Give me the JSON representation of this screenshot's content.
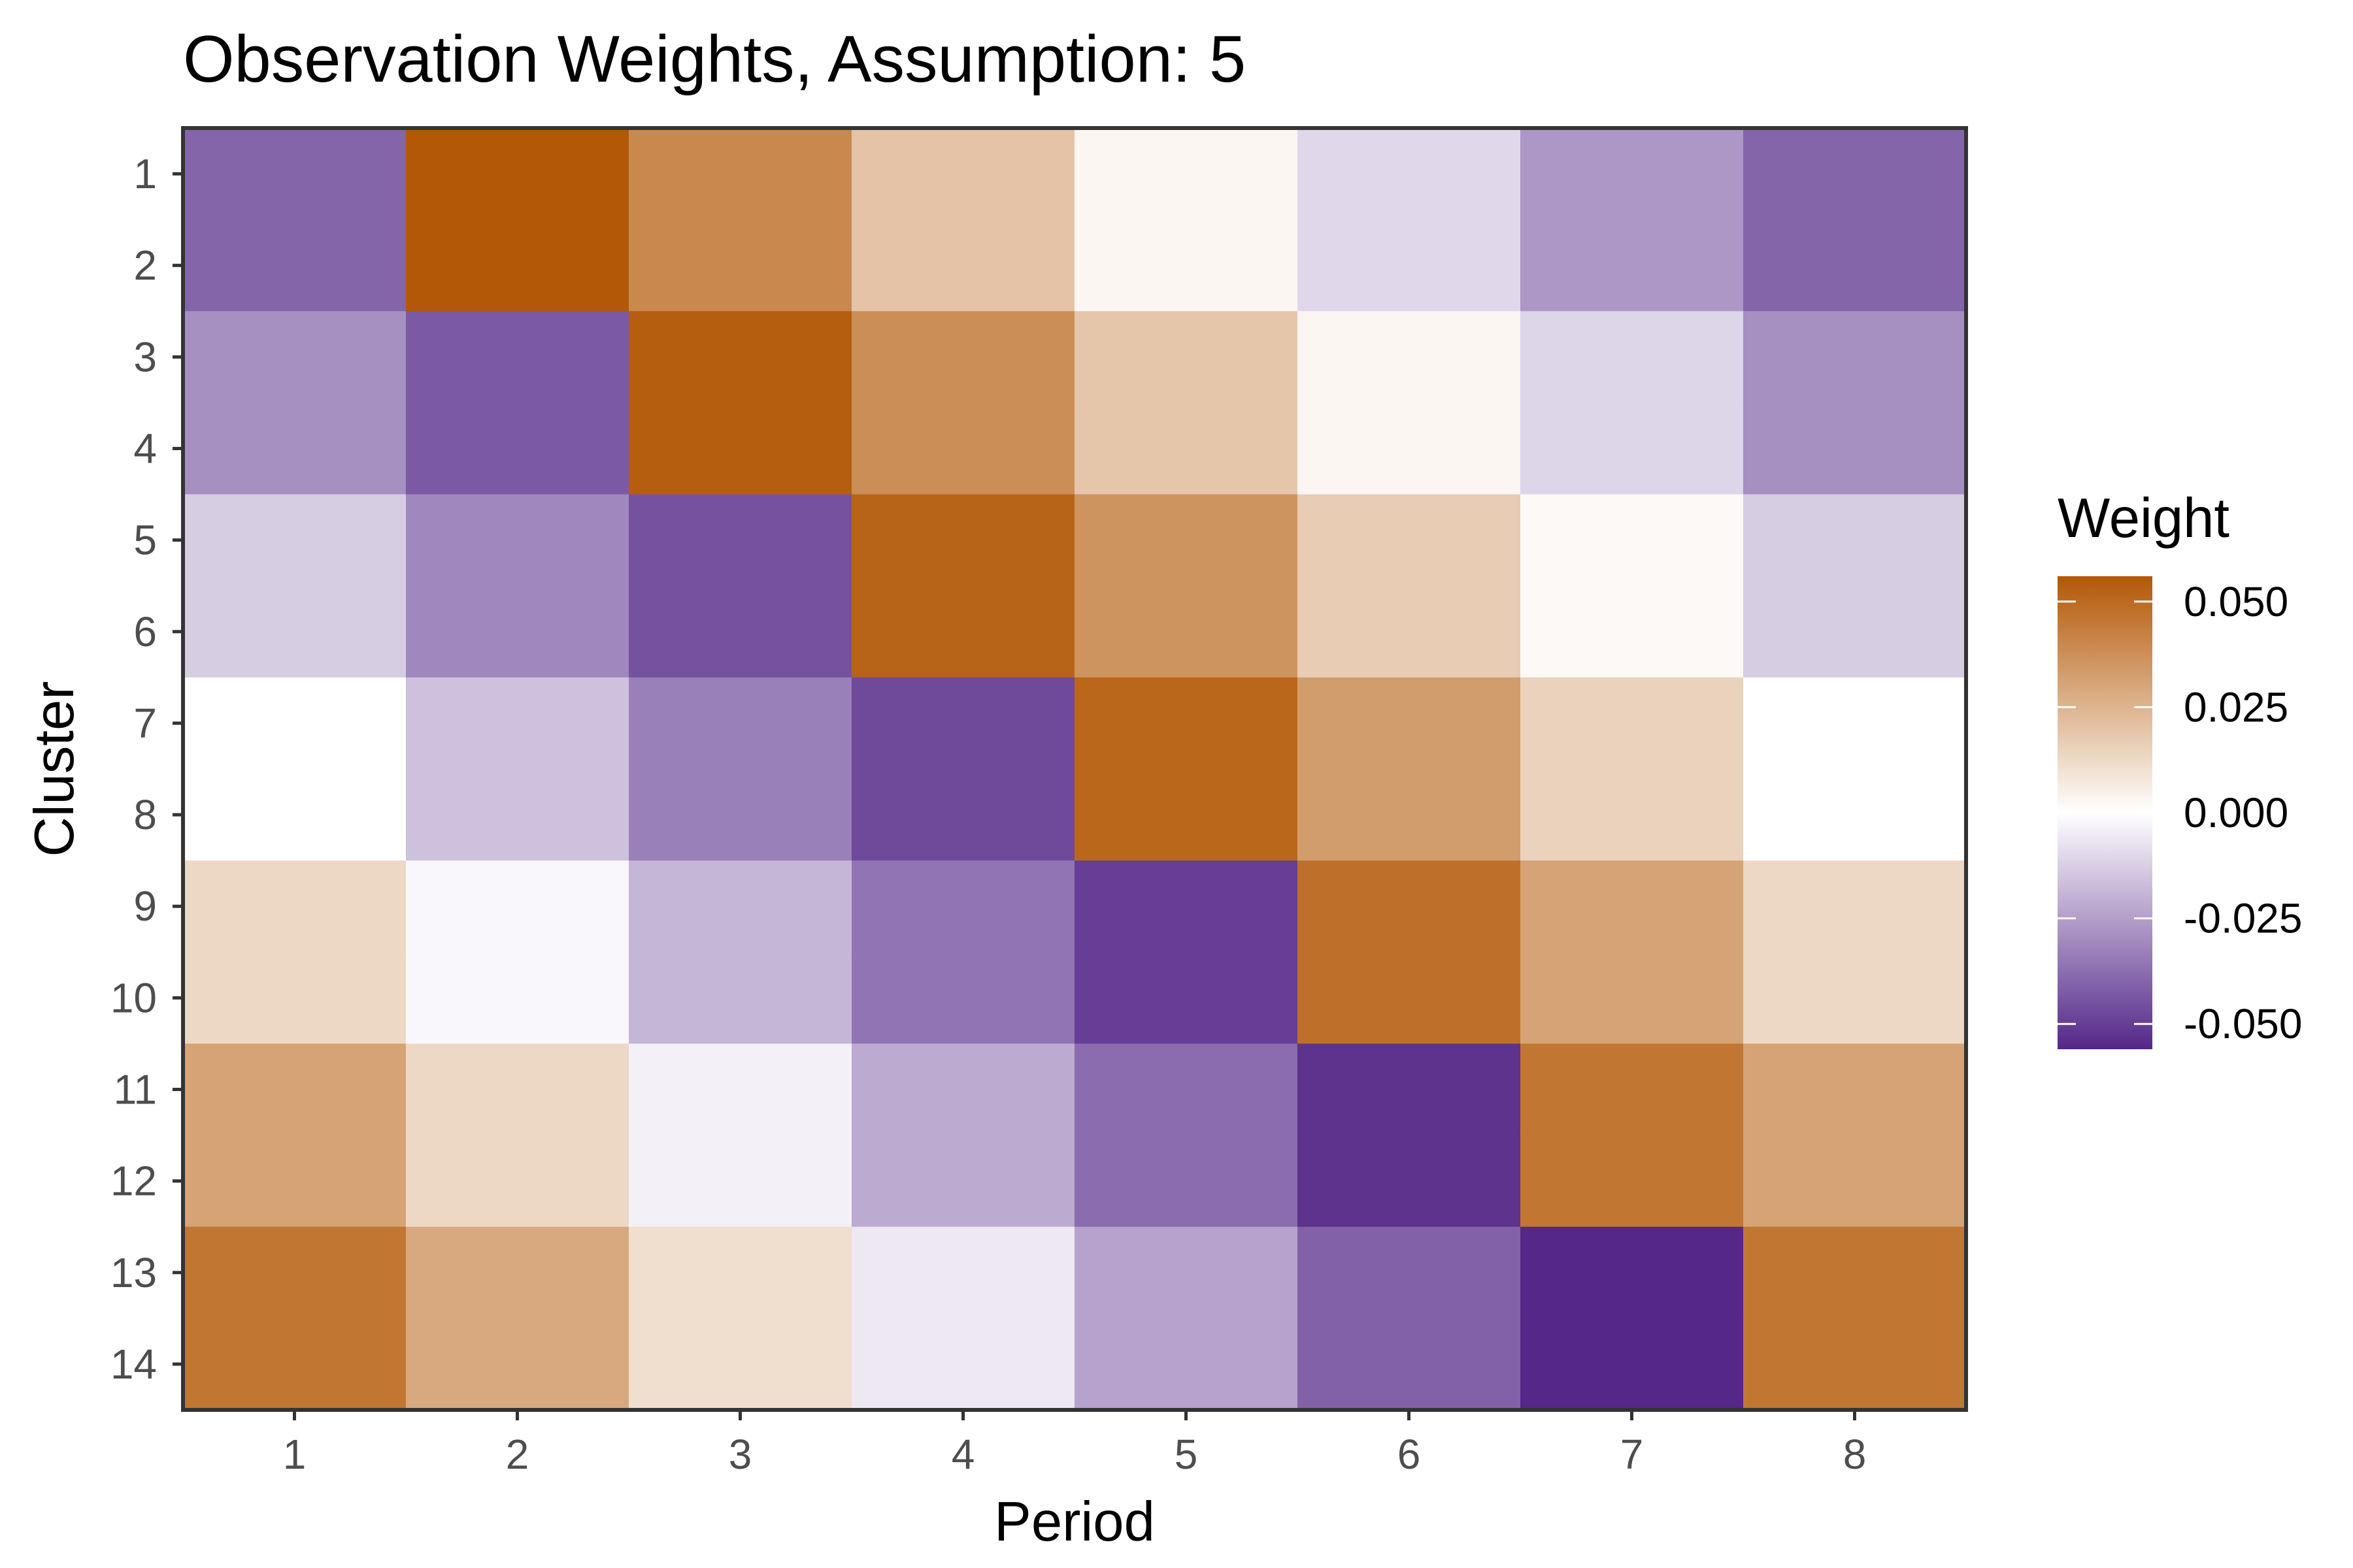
{
  "chart_data": {
    "type": "heatmap",
    "title": "Observation Weights, Assumption: 5",
    "xlabel": "Period",
    "ylabel": "Cluster",
    "x_categories": [
      "1",
      "2",
      "3",
      "4",
      "5",
      "6",
      "7",
      "8"
    ],
    "y_categories": [
      "1",
      "2",
      "3",
      "4",
      "5",
      "6",
      "7",
      "8",
      "9",
      "10",
      "11",
      "12",
      "13",
      "14"
    ],
    "values": [
      [
        -0.04,
        0.056,
        0.04,
        0.02,
        0.003,
        -0.01,
        -0.027,
        -0.04
      ],
      [
        -0.04,
        0.056,
        0.04,
        0.02,
        0.003,
        -0.01,
        -0.027,
        -0.04
      ],
      [
        -0.029,
        -0.043,
        0.054,
        0.038,
        0.019,
        0.003,
        -0.011,
        -0.029
      ],
      [
        -0.029,
        -0.043,
        0.054,
        0.038,
        0.019,
        0.003,
        -0.011,
        -0.029
      ],
      [
        -0.013,
        -0.031,
        -0.045,
        0.052,
        0.036,
        0.017,
        0.002,
        -0.013
      ],
      [
        -0.013,
        -0.031,
        -0.045,
        0.052,
        0.036,
        0.017,
        0.002,
        -0.013
      ],
      [
        0.0,
        -0.016,
        -0.033,
        -0.047,
        0.051,
        0.033,
        0.015,
        0.0
      ],
      [
        0.0,
        -0.016,
        -0.033,
        -0.047,
        0.051,
        0.033,
        0.015,
        0.0
      ],
      [
        0.013,
        -0.002,
        -0.019,
        -0.036,
        -0.05,
        0.048,
        0.031,
        0.013
      ],
      [
        0.013,
        -0.002,
        -0.019,
        -0.036,
        -0.05,
        0.048,
        0.031,
        0.013
      ],
      [
        0.031,
        0.013,
        -0.004,
        -0.022,
        -0.038,
        -0.053,
        0.046,
        0.031
      ],
      [
        0.031,
        0.013,
        -0.004,
        -0.022,
        -0.038,
        -0.053,
        0.046,
        0.031
      ],
      [
        0.046,
        0.029,
        0.011,
        -0.006,
        -0.024,
        -0.041,
        -0.056,
        0.046
      ],
      [
        0.046,
        0.029,
        0.011,
        -0.006,
        -0.024,
        -0.041,
        -0.056,
        0.046
      ]
    ],
    "legend": {
      "title": "Weight",
      "position": "right",
      "range": [
        -0.056,
        0.056
      ],
      "breaks": [
        0.05,
        0.025,
        0.0,
        -0.025,
        -0.05
      ],
      "labels": [
        "0.050",
        "0.025",
        "0.000",
        "-0.025",
        "-0.050"
      ]
    },
    "colors": {
      "high": "#b35806",
      "mid": "#ffffff",
      "low": "#542788",
      "panel_border": "#333333",
      "tick": "#333333"
    },
    "grid": false
  }
}
